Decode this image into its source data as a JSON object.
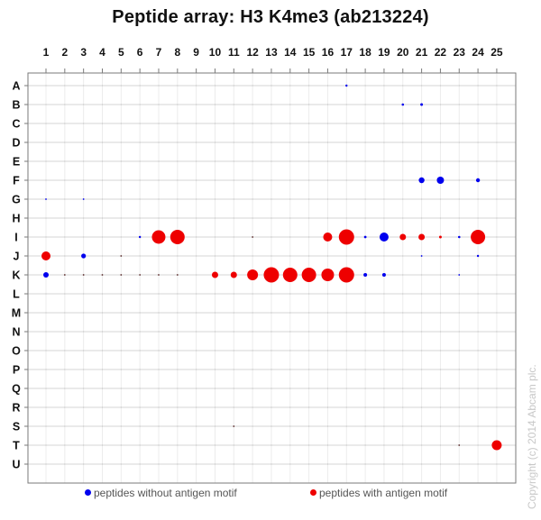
{
  "header": {
    "title": "Peptide array:  H3 K4me3 (ab213224)"
  },
  "legend": {
    "items": [
      {
        "label": "peptides without antigen motif",
        "color": "#0000ee"
      },
      {
        "label": "peptides with antigen motif",
        "color": "#ee0000"
      }
    ]
  },
  "footer": {
    "copyright": "Copyright (c) 2014 Abcam plc."
  },
  "chart_data": {
    "type": "scatter",
    "title": "Peptide array:  H3 K4me3 (ab213224)",
    "xlabel": "",
    "ylabel": "",
    "columns": [
      "1",
      "2",
      "3",
      "4",
      "5",
      "6",
      "7",
      "8",
      "9",
      "10",
      "11",
      "12",
      "13",
      "14",
      "15",
      "16",
      "17",
      "18",
      "19",
      "20",
      "21",
      "22",
      "23",
      "24",
      "25"
    ],
    "rows": [
      "A",
      "B",
      "C",
      "D",
      "E",
      "F",
      "G",
      "H",
      "I",
      "J",
      "K",
      "L",
      "M",
      "N",
      "O",
      "P",
      "Q",
      "R",
      "S",
      "T",
      "U"
    ],
    "grid": true,
    "legend_position": "bottom",
    "size_note": "dot radius in px (relative signal intensity)",
    "series": [
      {
        "name": "peptides without antigen motif",
        "color": "#0000ee",
        "points": [
          {
            "row": "A",
            "col": 17,
            "r": 1.2
          },
          {
            "row": "B",
            "col": 20,
            "r": 1.3
          },
          {
            "row": "B",
            "col": 21,
            "r": 1.5
          },
          {
            "row": "F",
            "col": 21,
            "r": 3.2
          },
          {
            "row": "F",
            "col": 22,
            "r": 4
          },
          {
            "row": "F",
            "col": 24,
            "r": 2.2
          },
          {
            "row": "G",
            "col": 1,
            "r": 0.9
          },
          {
            "row": "G",
            "col": 3,
            "r": 0.9
          },
          {
            "row": "I",
            "col": 6,
            "r": 1.2
          },
          {
            "row": "I",
            "col": 18,
            "r": 1.4
          },
          {
            "row": "I",
            "col": 19,
            "r": 5
          },
          {
            "row": "I",
            "col": 23,
            "r": 1.3
          },
          {
            "row": "J",
            "col": 3,
            "r": 2.6
          },
          {
            "row": "J",
            "col": 21,
            "r": 0.9
          },
          {
            "row": "J",
            "col": 24,
            "r": 1.2
          },
          {
            "row": "K",
            "col": 1,
            "r": 3
          },
          {
            "row": "K",
            "col": 18,
            "r": 2
          },
          {
            "row": "K",
            "col": 19,
            "r": 2
          },
          {
            "row": "K",
            "col": 23,
            "r": 0.9
          }
        ]
      },
      {
        "name": "peptides with antigen motif",
        "color": "#ee0000",
        "points": [
          {
            "row": "I",
            "col": 7,
            "r": 7.5
          },
          {
            "row": "I",
            "col": 8,
            "r": 8
          },
          {
            "row": "I",
            "col": 16,
            "r": 5
          },
          {
            "row": "I",
            "col": 17,
            "r": 8.5
          },
          {
            "row": "I",
            "col": 20,
            "r": 3.5
          },
          {
            "row": "I",
            "col": 21,
            "r": 3.5
          },
          {
            "row": "I",
            "col": 22,
            "r": 1.5
          },
          {
            "row": "I",
            "col": 24,
            "r": 8
          },
          {
            "row": "J",
            "col": 1,
            "r": 5
          },
          {
            "row": "K",
            "col": 10,
            "r": 3.5
          },
          {
            "row": "K",
            "col": 11,
            "r": 3.5
          },
          {
            "row": "K",
            "col": 12,
            "r": 6
          },
          {
            "row": "K",
            "col": 13,
            "r": 8.5
          },
          {
            "row": "K",
            "col": 14,
            "r": 8
          },
          {
            "row": "K",
            "col": 15,
            "r": 8
          },
          {
            "row": "K",
            "col": 16,
            "r": 7
          },
          {
            "row": "K",
            "col": 17,
            "r": 8.5
          },
          {
            "row": "T",
            "col": 25,
            "r": 5.5
          }
        ]
      }
    ],
    "background_marks": [
      {
        "row": "I",
        "col": 12,
        "r": 0.9
      },
      {
        "row": "J",
        "col": 5,
        "r": 0.9
      },
      {
        "row": "K",
        "col": 2,
        "r": 0.9
      },
      {
        "row": "K",
        "col": 3,
        "r": 0.9
      },
      {
        "row": "K",
        "col": 4,
        "r": 0.9
      },
      {
        "row": "K",
        "col": 5,
        "r": 0.9
      },
      {
        "row": "K",
        "col": 6,
        "r": 0.9
      },
      {
        "row": "K",
        "col": 7,
        "r": 0.9
      },
      {
        "row": "K",
        "col": 8,
        "r": 0.9
      },
      {
        "row": "S",
        "col": 11,
        "r": 0.9
      },
      {
        "row": "T",
        "col": 23,
        "r": 0.9
      }
    ]
  }
}
